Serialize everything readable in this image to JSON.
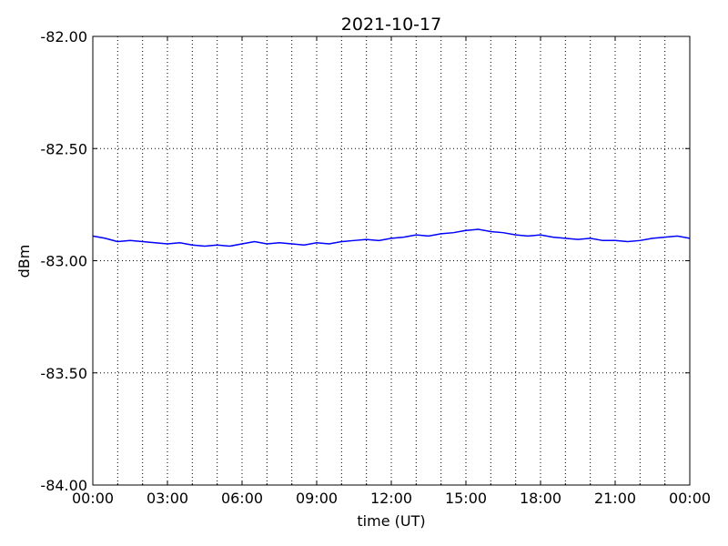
{
  "chart_data": {
    "type": "line",
    "title": "2021-10-17",
    "x_label": "time (UT)",
    "y_label": "dBm",
    "color": "#0000ff",
    "grid": true,
    "xlim": [
      0,
      24
    ],
    "xticks": [
      {
        "value": 0,
        "label": "00:00"
      },
      {
        "value": 3,
        "label": "03:00"
      },
      {
        "value": 6,
        "label": "06:00"
      },
      {
        "value": 9,
        "label": "09:00"
      },
      {
        "value": 12,
        "label": "12:00"
      },
      {
        "value": 15,
        "label": "15:00"
      },
      {
        "value": 18,
        "label": "18:00"
      },
      {
        "value": 21,
        "label": "21:00"
      },
      {
        "value": 24,
        "label": "00:00"
      }
    ],
    "xminorticks": [
      0,
      1,
      2,
      3,
      4,
      5,
      6,
      7,
      8,
      9,
      10,
      11,
      12,
      13,
      14,
      15,
      16,
      17,
      18,
      19,
      20,
      21,
      22,
      23,
      24
    ],
    "ylim": [
      -84,
      -82
    ],
    "yticks": [
      {
        "value": -84,
        "label": "-84.00"
      },
      {
        "value": -83.5,
        "label": "-83.50"
      },
      {
        "value": -83,
        "label": "-83.00"
      },
      {
        "value": -82.5,
        "label": "-82.50"
      },
      {
        "value": -82,
        "label": "-82.00"
      }
    ],
    "x": [
      0,
      0.5,
      1,
      1.5,
      2,
      2.5,
      3,
      3.5,
      4,
      4.5,
      5,
      5.5,
      6,
      6.5,
      7,
      7.5,
      8,
      8.5,
      9,
      9.5,
      10,
      10.5,
      11,
      11.5,
      12,
      12.5,
      13,
      13.5,
      14,
      14.5,
      15,
      15.5,
      16,
      16.5,
      17,
      17.5,
      18,
      18.5,
      19,
      19.5,
      20,
      20.5,
      21,
      21.5,
      22,
      22.5,
      23,
      23.5,
      24
    ],
    "values": [
      -82.89,
      -82.9,
      -82.915,
      -82.91,
      -82.915,
      -82.92,
      -82.925,
      -82.92,
      -82.93,
      -82.935,
      -82.93,
      -82.935,
      -82.925,
      -82.915,
      -82.925,
      -82.92,
      -82.925,
      -82.93,
      -82.92,
      -82.925,
      -82.915,
      -82.91,
      -82.905,
      -82.91,
      -82.9,
      -82.895,
      -82.885,
      -82.89,
      -82.88,
      -82.875,
      -82.865,
      -82.86,
      -82.87,
      -82.875,
      -82.885,
      -82.89,
      -82.885,
      -82.895,
      -82.9,
      -82.905,
      -82.9,
      -82.91,
      -82.91,
      -82.915,
      -82.91,
      -82.9,
      -82.895,
      -82.89,
      -82.9
    ]
  }
}
